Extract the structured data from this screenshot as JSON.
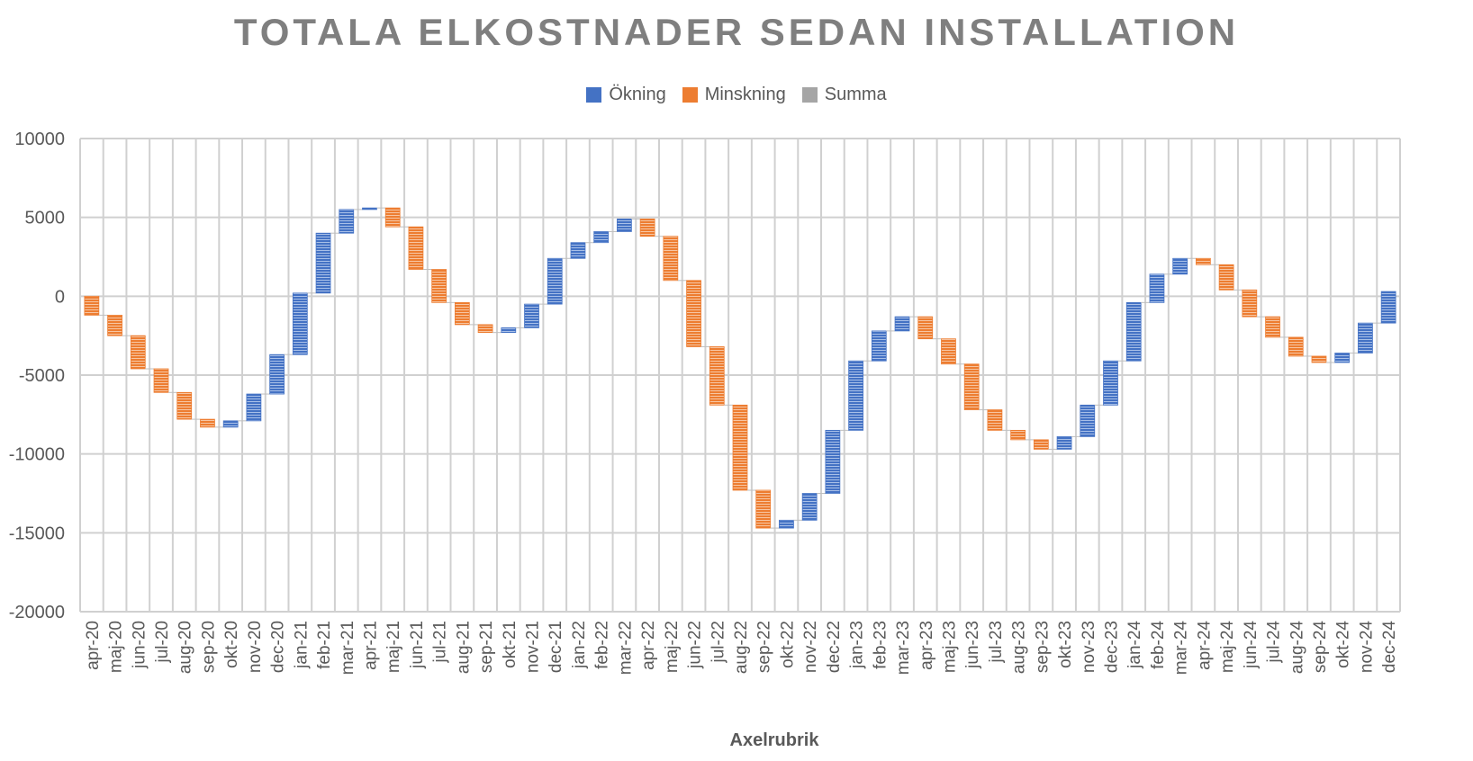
{
  "chart_data": {
    "type": "waterfall",
    "title": "TOTALA ELKOSTNADER SEDAN INSTALLATION",
    "xlabel": "Axelrubrik",
    "ylabel": "",
    "ylim": [
      -20000,
      10000
    ],
    "yticks": [
      10000,
      5000,
      0,
      -5000,
      -10000,
      -15000,
      -20000
    ],
    "grid": true,
    "legend_position": "top",
    "legend": [
      {
        "label": "Ökning",
        "color": "#4472c4"
      },
      {
        "label": "Minskning",
        "color": "#ed7d31"
      },
      {
        "label": "Summa",
        "color": "#a5a5a5"
      }
    ],
    "categories": [
      "apr-20",
      "maj-20",
      "jun-20",
      "jul-20",
      "aug-20",
      "sep-20",
      "okt-20",
      "nov-20",
      "dec-20",
      "jan-21",
      "feb-21",
      "mar-21",
      "apr-21",
      "maj-21",
      "jun-21",
      "jul-21",
      "aug-21",
      "sep-21",
      "okt-21",
      "nov-21",
      "dec-21",
      "jan-22",
      "feb-22",
      "mar-22",
      "apr-22",
      "maj-22",
      "jun-22",
      "jul-22",
      "aug-22",
      "sep-22",
      "okt-22",
      "nov-22",
      "dec-22",
      "jan-23",
      "feb-23",
      "mar-23",
      "apr-23",
      "maj-23",
      "jun-23",
      "jul-23",
      "aug-23",
      "sep-23",
      "okt-23",
      "nov-23",
      "dec-23",
      "jan-24",
      "feb-24",
      "mar-24",
      "apr-24",
      "maj-24",
      "jun-24",
      "jul-24",
      "aug-24",
      "sep-24",
      "okt-24",
      "nov-24",
      "dec-24"
    ],
    "changes": [
      -1200,
      -1300,
      -2100,
      -1500,
      -1700,
      -500,
      400,
      1700,
      2500,
      3900,
      3800,
      1500,
      100,
      -1200,
      -2700,
      -2100,
      -1400,
      -500,
      300,
      1500,
      2900,
      1000,
      700,
      800,
      -1100,
      -2800,
      -4200,
      -3700,
      -5400,
      -2400,
      500,
      1700,
      4000,
      4400,
      1900,
      900,
      -1400,
      -1600,
      -2900,
      -1300,
      -600,
      -600,
      800,
      2000,
      2800,
      3700,
      1800,
      1000,
      -400,
      -1600,
      -1700,
      -1300,
      -1200,
      -400,
      600,
      1900,
      2000
    ],
    "totals": [
      -1200,
      -2500,
      -4600,
      -6100,
      -7800,
      -8300,
      -7900,
      -6200,
      -3700,
      200,
      4000,
      5500,
      5600,
      4400,
      1700,
      -400,
      -1800,
      -2300,
      -2000,
      -500,
      2400,
      3400,
      4100,
      4900,
      3800,
      1000,
      -3200,
      -6900,
      -12300,
      -14700,
      -14200,
      -12500,
      -8500,
      -4100,
      -2200,
      -1300,
      -2700,
      -4300,
      -7200,
      -8500,
      -9100,
      -9700,
      -8900,
      -6900,
      -4100,
      -400,
      1400,
      2400,
      2000,
      400,
      -1300,
      -2600,
      -3800,
      -4200,
      -3600,
      -1700,
      300
    ]
  }
}
